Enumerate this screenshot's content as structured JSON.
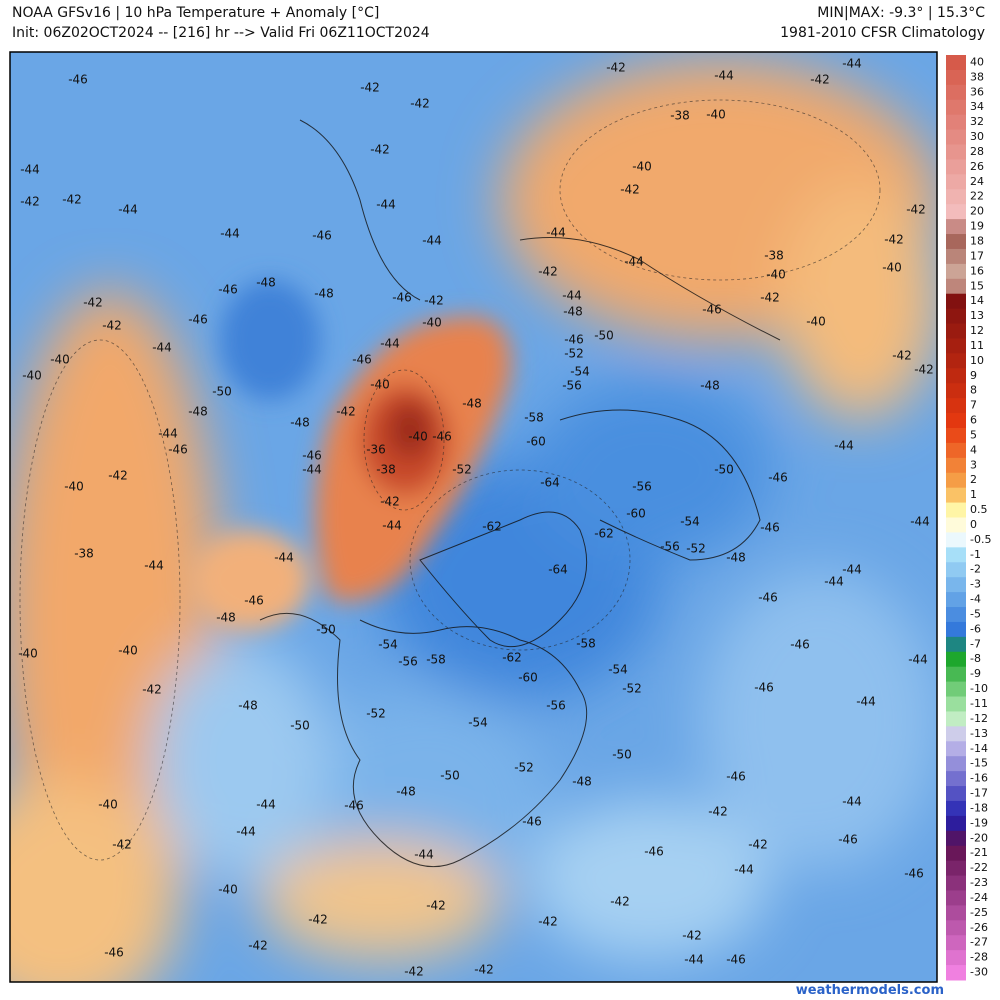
{
  "header": {
    "title": "NOAA GFSv16 | 10 hPa Temperature + Anomaly [°C]",
    "subtitle": "Init: 06Z02OCT2024 -- [216] hr --> Valid Fri 06Z11OCT2024",
    "minmax": "MIN|MAX: -9.3° | 15.3°C",
    "climatology": "1981-2010 CFSR Climatology"
  },
  "colorbar": {
    "labels": [
      40,
      38,
      36,
      34,
      32,
      30,
      28,
      26,
      24,
      22,
      20,
      19,
      18,
      17,
      16,
      15,
      14,
      13,
      12,
      11,
      10,
      9,
      8,
      7,
      6,
      5,
      4,
      3,
      2,
      1,
      0.5,
      0,
      -0.5,
      -1,
      -2,
      -3,
      -4,
      -5,
      -6,
      -7,
      -8,
      -9,
      -10,
      -11,
      -12,
      -13,
      -14,
      -15,
      -16,
      -17,
      -18,
      -19,
      -20,
      -21,
      -22,
      -23,
      -24,
      -25,
      -26,
      -27,
      -28,
      -30
    ]
  },
  "contour_labels": [
    -46,
    -44,
    -42,
    -42,
    -44,
    -42,
    -42,
    -40,
    -40,
    -44,
    -46,
    -50,
    -48,
    -44,
    -46,
    -42,
    -40,
    -38,
    -44,
    -48,
    -46,
    -50,
    -40,
    -40,
    -42,
    -48,
    -50,
    -40,
    -42,
    -40,
    -42,
    -42,
    -46,
    -42,
    -42,
    -44,
    -44,
    -46,
    -48,
    -50,
    -52,
    -56,
    -58,
    -54,
    -54,
    -60,
    -62,
    -56,
    -52,
    -46,
    -44,
    -42,
    -48,
    -50,
    -52,
    -54,
    -58,
    -64,
    -62,
    -62,
    -64,
    -60,
    -58,
    -56,
    -54,
    -52,
    -50,
    -46,
    -48,
    -44,
    -42,
    -44,
    -46,
    -48,
    -48,
    -46,
    -44,
    -46,
    -42,
    -40,
    -44,
    -44,
    -46,
    -40,
    -42,
    -36,
    -38,
    -40,
    -46,
    -48,
    -52,
    -42,
    -44,
    -48,
    -46,
    -44,
    -44,
    -42,
    -42,
    -42,
    -44,
    -42,
    -44,
    -42,
    -44,
    -38,
    -40,
    -40,
    -42,
    -44,
    -38,
    -40,
    -42,
    -40,
    -42,
    -42,
    -40,
    -42,
    -42,
    -46,
    -48,
    -50,
    -46,
    -44,
    -44,
    -46,
    -48,
    -44,
    -44,
    -46,
    -46,
    -44,
    -46,
    -44,
    -46,
    -44,
    -46,
    -46,
    -42,
    -42,
    -44,
    -46,
    -42,
    -42,
    -44,
    -46,
    -42,
    -56,
    -54,
    -56,
    -52,
    -60
  ],
  "footer": "weathermodels.com"
}
